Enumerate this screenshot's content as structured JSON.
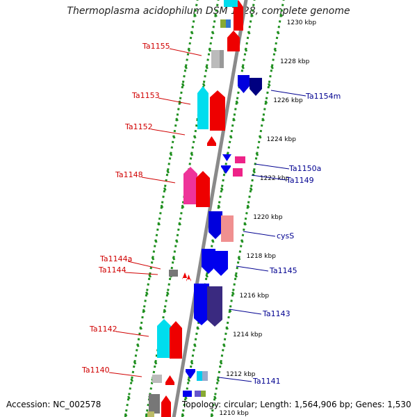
{
  "title": "Thermoplasma acidophilum DSM 1728, complete genome",
  "footer": {
    "accession": "Accession: NC_002578",
    "topology": "Topology: circular; Length: 1,564,906 bp; Genes: 1,530"
  },
  "colors": {
    "left_label": "#d00000",
    "right_label": "#000090",
    "backbone": "#8a8a8a",
    "tick": "#1f8f1f"
  },
  "scale_labels": [
    "1230 kbp",
    "1228 kbp",
    "1226 kbp",
    "1224 kbp",
    "1222 kbp",
    "1220 kbp",
    "1218 kbp",
    "1216 kbp",
    "1214 kbp",
    "1212 kbp",
    "1210 kbp"
  ],
  "left_genes": [
    "Ta1155",
    "Ta1153",
    "Ta1152",
    "Ta1148",
    "Ta1144a",
    "Ta1144",
    "Ta1142",
    "Ta1140"
  ],
  "right_genes": [
    "Ta1154m",
    "Ta1150a",
    "Ta1149",
    "cysS",
    "Ta1145",
    "Ta1143",
    "Ta1141"
  ]
}
